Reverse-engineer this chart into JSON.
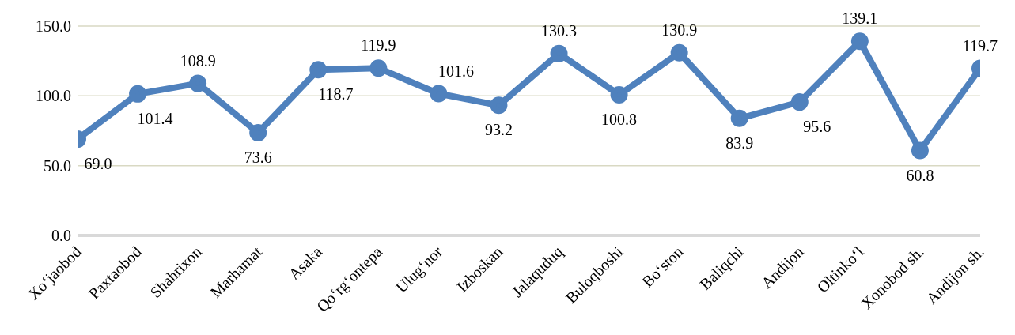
{
  "chart_data": {
    "type": "line",
    "categories": [
      "Xo‘jaobod",
      "Paxtaobod",
      "Shahrixon",
      "Marhamat",
      "Asaka",
      "Qo‘rg‘ontepa",
      "Ulug‘nor",
      "Izboskan",
      "Jalaquduq",
      "Buloqboshi",
      "Bo‘ston",
      "Baliqchi",
      "Andijon",
      "Oltinko‘l",
      "Xonobod sh.",
      "Andijon sh."
    ],
    "series": [
      {
        "color": "#4f81bd",
        "values": [
          69.0,
          101.4,
          108.9,
          73.6,
          118.7,
          119.9,
          101.6,
          93.2,
          130.3,
          100.8,
          130.9,
          83.9,
          95.6,
          139.1,
          60.8,
          119.7
        ],
        "value_labels": [
          "69.0",
          "101.4",
          "108.9",
          "73.6",
          "118.7",
          "119.9",
          "101.6",
          "93.2",
          "130.3",
          "100.8",
          "130.9",
          "83.9",
          "95.6",
          "139.1",
          "60.8",
          "119.7"
        ]
      }
    ],
    "ylim": [
      0,
      150
    ],
    "yticks": [
      {
        "value": 0,
        "label": "0.0"
      },
      {
        "value": 50,
        "label": "50.0"
      },
      {
        "value": 100,
        "label": "100.0"
      },
      {
        "value": 150,
        "label": "150.0"
      }
    ],
    "grid": "y",
    "marker": "circle",
    "line_style": "solid",
    "legend": false
  }
}
